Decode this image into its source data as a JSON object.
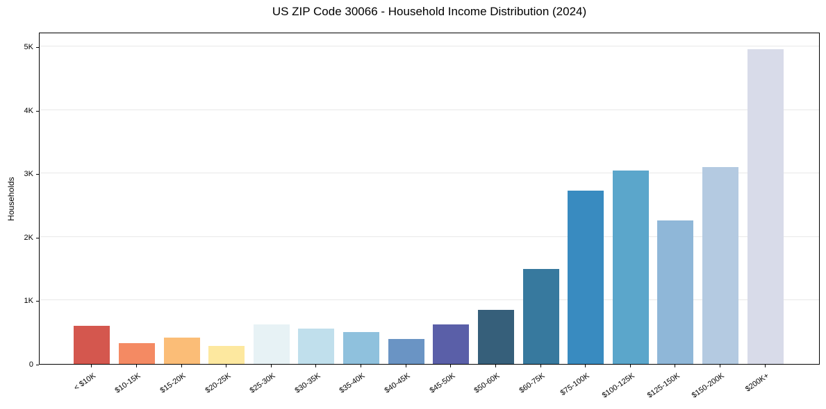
{
  "chart_data": {
    "type": "bar",
    "title": "US ZIP Code 30066 - Household Income Distribution (2024)",
    "xlabel": "",
    "ylabel": "Households",
    "categories": [
      "< $10K",
      "$10-15K",
      "$15-20K",
      "$20-25K",
      "$25-30K",
      "$30-35K",
      "$35-40K",
      "$40-45K",
      "$45-50K",
      "$50-60K",
      "$60-75K",
      "$75-100K",
      "$100-125K",
      "$125-150K",
      "$150-200K",
      "$200K+"
    ],
    "values": [
      600,
      330,
      415,
      285,
      625,
      555,
      500,
      395,
      625,
      850,
      1500,
      2730,
      3050,
      2260,
      3100,
      4960
    ],
    "bar_colors": [
      "#d4574e",
      "#f48a63",
      "#fbbd77",
      "#fde89f",
      "#e7f2f5",
      "#c0dfec",
      "#8fc1dd",
      "#6a94c4",
      "#5a5fa8",
      "#365f7a",
      "#37799e",
      "#398bc0",
      "#5ba6cb",
      "#8fb7d8",
      "#b4cae1",
      "#d8dbe9"
    ],
    "y_ticks": [
      {
        "value": 0,
        "label": "0"
      },
      {
        "value": 1000,
        "label": "1K"
      },
      {
        "value": 2000,
        "label": "2K"
      },
      {
        "value": 3000,
        "label": "3K"
      },
      {
        "value": 4000,
        "label": "4K"
      },
      {
        "value": 5000,
        "label": "5K"
      }
    ],
    "ylim": [
      0,
      5230
    ],
    "grid": "horizontal",
    "gridline_color": "#e8e8e8",
    "legend": "none"
  }
}
